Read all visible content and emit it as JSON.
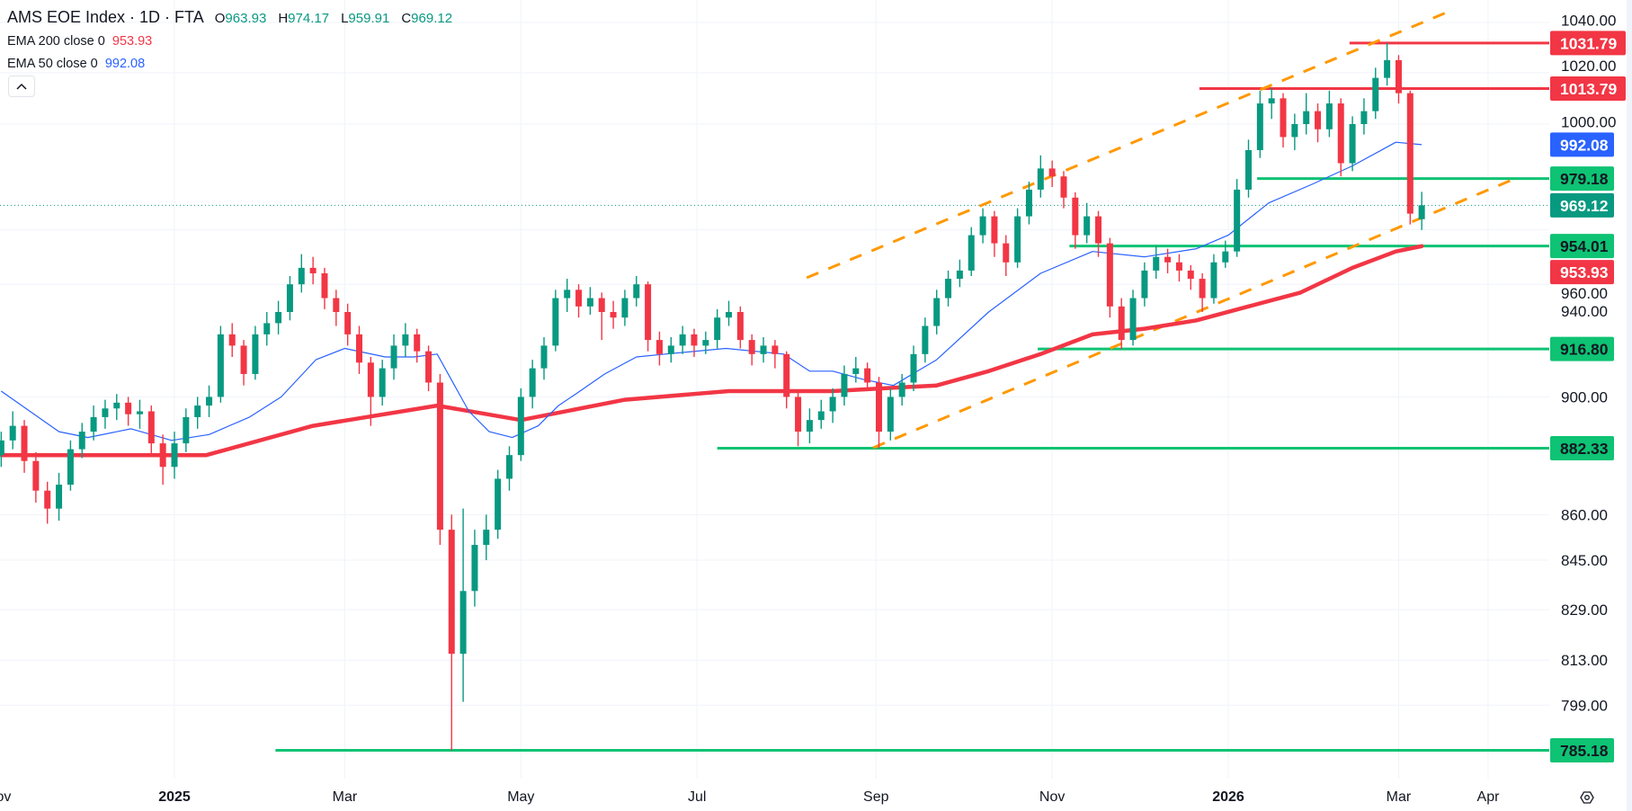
{
  "legend": {
    "title": "AMS EOE Index · 1D · FTA",
    "ohlc": [
      {
        "key": "O",
        "value": "963.93"
      },
      {
        "key": "H",
        "value": "974.17"
      },
      {
        "key": "L",
        "value": "959.91"
      },
      {
        "key": "C",
        "value": "969.12"
      }
    ],
    "ema200": {
      "label": "EMA 200 close 0",
      "value": "953.93"
    },
    "ema50": {
      "label": "EMA 50 close 0",
      "value": "992.08"
    }
  },
  "colors": {
    "up": "#089981",
    "down": "#f23645",
    "ema200": "#f23645",
    "ema50": "#2962ff",
    "support": "#0ec373",
    "resistance": "#f23645",
    "trendline": "#ff9800",
    "grid": "#f0f3fa"
  },
  "icons": {
    "collapse": "chevron-up-icon",
    "settings": "gear-icon"
  },
  "chart_data": {
    "type": "candlestick",
    "scale": "log",
    "grid": true,
    "ylim": [
      775,
      1050
    ],
    "y_ticks": [
      "1040.00",
      "1020.00",
      "1000.00",
      "960.00",
      "940.00",
      "900.00",
      "860.00",
      "845.00",
      "829.00",
      "813.00",
      "799.00"
    ],
    "x_ticks": [
      {
        "label": "Nov",
        "date": "2024-11-01"
      },
      {
        "label": "2025",
        "date": "2025-01-01"
      },
      {
        "label": "Mar",
        "date": "2025-03-01"
      },
      {
        "label": "May",
        "date": "2025-05-01"
      },
      {
        "label": "Jul",
        "date": "2025-07-01"
      },
      {
        "label": "Sep",
        "date": "2025-09-01"
      },
      {
        "label": "Nov",
        "date": "2025-11-01"
      },
      {
        "label": "2026",
        "date": "2026-01-01"
      },
      {
        "label": "Mar",
        "date": "2026-03-01"
      },
      {
        "label": "Apr",
        "date": "2026-04-01"
      }
    ],
    "candles": [
      [
        "2024-11-02",
        880,
        888,
        876,
        885
      ],
      [
        "2024-11-06",
        885,
        895,
        882,
        890
      ],
      [
        "2024-11-10",
        890,
        892,
        874,
        878
      ],
      [
        "2024-11-14",
        878,
        881,
        864,
        868
      ],
      [
        "2024-11-18",
        868,
        871,
        857,
        862
      ],
      [
        "2024-11-22",
        862,
        874,
        858,
        870
      ],
      [
        "2024-11-26",
        870,
        885,
        868,
        882
      ],
      [
        "2024-11-30",
        882,
        891,
        879,
        888
      ],
      [
        "2024-12-04",
        888,
        897,
        885,
        893
      ],
      [
        "2024-12-08",
        893,
        899,
        889,
        896
      ],
      [
        "2024-12-12",
        896,
        901,
        892,
        898
      ],
      [
        "2024-12-16",
        898,
        900,
        890,
        894
      ],
      [
        "2024-12-20",
        894,
        899,
        889,
        895
      ],
      [
        "2024-12-24",
        895,
        897,
        880,
        884
      ],
      [
        "2024-12-28",
        884,
        887,
        870,
        876
      ],
      [
        "2025-01-01",
        876,
        888,
        872,
        884
      ],
      [
        "2025-01-05",
        884,
        896,
        881,
        893
      ],
      [
        "2025-01-09",
        893,
        900,
        889,
        897
      ],
      [
        "2025-01-13",
        897,
        904,
        893,
        900
      ],
      [
        "2025-01-17",
        900,
        925,
        898,
        922
      ],
      [
        "2025-01-21",
        922,
        926,
        914,
        918
      ],
      [
        "2025-01-25",
        918,
        920,
        904,
        908
      ],
      [
        "2025-01-29",
        908,
        925,
        906,
        922
      ],
      [
        "2025-02-02",
        922,
        930,
        918,
        926
      ],
      [
        "2025-02-06",
        926,
        934,
        922,
        930
      ],
      [
        "2025-02-10",
        930,
        943,
        927,
        940
      ],
      [
        "2025-02-14",
        940,
        951,
        937,
        946
      ],
      [
        "2025-02-18",
        946,
        950,
        940,
        944
      ],
      [
        "2025-02-22",
        944,
        946,
        931,
        935
      ],
      [
        "2025-02-26",
        935,
        938,
        925,
        930
      ],
      [
        "2025-03-02",
        930,
        933,
        918,
        922
      ],
      [
        "2025-03-06",
        922,
        925,
        908,
        912
      ],
      [
        "2025-03-10",
        912,
        914,
        890,
        900
      ],
      [
        "2025-03-14",
        900,
        913,
        897,
        910
      ],
      [
        "2025-03-18",
        910,
        922,
        906,
        918
      ],
      [
        "2025-03-22",
        918,
        926,
        914,
        922
      ],
      [
        "2025-03-26",
        922,
        924,
        912,
        916
      ],
      [
        "2025-03-30",
        916,
        918,
        902,
        905
      ],
      [
        "2025-04-03",
        905,
        908,
        850,
        855
      ],
      [
        "2025-04-07",
        855,
        860,
        785.18,
        815
      ],
      [
        "2025-04-11",
        815,
        862,
        800,
        835
      ],
      [
        "2025-04-15",
        835,
        855,
        830,
        850
      ],
      [
        "2025-04-19",
        850,
        860,
        845,
        855
      ],
      [
        "2025-04-23",
        855,
        875,
        852,
        872
      ],
      [
        "2025-04-27",
        872,
        883,
        868,
        880
      ],
      [
        "2025-05-01",
        880,
        903,
        878,
        900
      ],
      [
        "2025-05-05",
        900,
        913,
        896,
        910
      ],
      [
        "2025-05-09",
        910,
        921,
        906,
        918
      ],
      [
        "2025-05-13",
        918,
        938,
        916,
        935
      ],
      [
        "2025-05-17",
        935,
        942,
        930,
        938
      ],
      [
        "2025-05-21",
        938,
        940,
        928,
        932
      ],
      [
        "2025-05-25",
        932,
        939,
        929,
        935
      ],
      [
        "2025-05-29",
        935,
        937,
        920,
        930
      ],
      [
        "2025-06-02",
        930,
        934,
        924,
        928
      ],
      [
        "2025-06-06",
        928,
        938,
        925,
        935
      ],
      [
        "2025-06-10",
        935,
        943,
        932,
        940
      ],
      [
        "2025-06-14",
        940,
        941,
        916,
        920
      ],
      [
        "2025-06-18",
        920,
        923,
        911,
        915
      ],
      [
        "2025-06-22",
        915,
        921,
        912,
        918
      ],
      [
        "2025-06-26",
        918,
        925,
        915,
        922
      ],
      [
        "2025-06-30",
        922,
        924,
        914,
        918
      ],
      [
        "2025-07-04",
        918,
        923,
        915,
        920
      ],
      [
        "2025-07-08",
        920,
        931,
        917,
        928
      ],
      [
        "2025-07-12",
        928,
        934,
        925,
        930
      ],
      [
        "2025-07-16",
        930,
        932,
        917,
        920
      ],
      [
        "2025-07-20",
        920,
        922,
        911,
        915
      ],
      [
        "2025-07-24",
        915,
        921,
        912,
        918
      ],
      [
        "2025-07-28",
        918,
        920,
        910,
        915
      ],
      [
        "2025-08-01",
        915,
        916,
        896,
        900
      ],
      [
        "2025-08-05",
        900,
        902,
        883,
        888
      ],
      [
        "2025-08-09",
        888,
        896,
        884,
        892
      ],
      [
        "2025-08-13",
        892,
        899,
        889,
        895
      ],
      [
        "2025-08-17",
        895,
        903,
        891,
        900
      ],
      [
        "2025-08-21",
        900,
        911,
        897,
        908
      ],
      [
        "2025-08-25",
        908,
        914,
        905,
        910
      ],
      [
        "2025-08-29",
        910,
        912,
        902,
        905
      ],
      [
        "2025-09-02",
        905,
        907,
        882.33,
        888
      ],
      [
        "2025-09-06",
        888,
        903,
        885,
        900
      ],
      [
        "2025-09-10",
        900,
        908,
        897,
        905
      ],
      [
        "2025-09-14",
        905,
        918,
        902,
        915
      ],
      [
        "2025-09-18",
        915,
        928,
        912,
        925
      ],
      [
        "2025-09-22",
        925,
        938,
        922,
        935
      ],
      [
        "2025-09-26",
        935,
        945,
        932,
        942
      ],
      [
        "2025-09-30",
        942,
        949,
        939,
        945
      ],
      [
        "2025-10-04",
        945,
        961,
        943,
        958
      ],
      [
        "2025-10-08",
        958,
        968,
        955,
        965
      ],
      [
        "2025-10-12",
        965,
        967,
        950,
        955
      ],
      [
        "2025-10-16",
        955,
        958,
        943,
        948
      ],
      [
        "2025-10-20",
        948,
        968,
        946,
        965
      ],
      [
        "2025-10-24",
        965,
        978,
        962,
        975
      ],
      [
        "2025-10-28",
        975,
        988,
        972,
        983
      ],
      [
        "2025-11-01",
        983,
        986,
        976,
        980
      ],
      [
        "2025-11-05",
        980,
        982,
        968,
        972
      ],
      [
        "2025-11-09",
        972,
        974,
        953,
        958
      ],
      [
        "2025-11-13",
        958,
        970,
        955,
        965
      ],
      [
        "2025-11-17",
        965,
        967,
        950,
        955
      ],
      [
        "2025-11-21",
        955,
        957,
        928,
        932
      ],
      [
        "2025-11-25",
        932,
        935,
        916.8,
        920
      ],
      [
        "2025-11-29",
        920,
        938,
        918,
        935
      ],
      [
        "2025-12-03",
        935,
        948,
        932,
        945
      ],
      [
        "2025-12-07",
        945,
        954,
        942,
        950
      ],
      [
        "2025-12-11",
        950,
        953,
        944,
        948
      ],
      [
        "2025-12-15",
        948,
        951,
        941,
        945
      ],
      [
        "2025-12-19",
        945,
        947,
        938,
        942
      ],
      [
        "2025-12-23",
        942,
        944,
        930,
        935
      ],
      [
        "2025-12-27",
        935,
        951,
        933,
        948
      ],
      [
        "2025-12-31",
        948,
        956,
        946,
        952
      ],
      [
        "2026-01-04",
        952,
        979,
        950,
        975
      ],
      [
        "2026-01-08",
        975,
        994,
        972,
        990
      ],
      [
        "2026-01-12",
        990,
        1013,
        987,
        1008
      ],
      [
        "2026-01-16",
        1008,
        1014,
        1002,
        1010
      ],
      [
        "2026-01-20",
        1010,
        1012,
        991,
        995
      ],
      [
        "2026-01-24",
        995,
        1004,
        990,
        1000
      ],
      [
        "2026-01-28",
        1000,
        1012,
        996,
        1005
      ],
      [
        "2026-02-01",
        1005,
        1008,
        993,
        998
      ],
      [
        "2026-02-05",
        998,
        1013,
        995,
        1008
      ],
      [
        "2026-02-09",
        1008,
        1010,
        980,
        985
      ],
      [
        "2026-02-13",
        985,
        1003,
        982,
        1000
      ],
      [
        "2026-02-17",
        1000,
        1010,
        996,
        1005
      ],
      [
        "2026-02-21",
        1005,
        1022,
        1002,
        1018
      ],
      [
        "2026-02-25",
        1018,
        1031.79,
        1015,
        1025
      ],
      [
        "2026-03-01",
        1025,
        1027,
        1008,
        1012
      ],
      [
        "2026-03-05",
        1012,
        1013,
        962,
        966
      ],
      [
        "2026-03-09",
        963.93,
        974.17,
        959.91,
        969.12
      ]
    ],
    "ema50": [
      [
        "2024-11-02",
        902
      ],
      [
        "2024-11-22",
        888
      ],
      [
        "2024-12-02",
        886
      ],
      [
        "2024-12-17",
        889
      ],
      [
        "2024-12-31",
        885
      ],
      [
        "2025-01-13",
        887
      ],
      [
        "2025-01-27",
        893
      ],
      [
        "2025-02-07",
        900
      ],
      [
        "2025-02-19",
        913
      ],
      [
        "2025-03-01",
        917
      ],
      [
        "2025-03-15",
        914
      ],
      [
        "2025-03-25",
        914
      ],
      [
        "2025-04-02",
        915
      ],
      [
        "2025-04-08",
        904
      ],
      [
        "2025-04-13",
        895
      ],
      [
        "2025-04-20",
        888
      ],
      [
        "2025-04-28",
        886
      ],
      [
        "2025-05-07",
        890
      ],
      [
        "2025-05-14",
        897
      ],
      [
        "2025-05-20",
        901
      ],
      [
        "2025-05-30",
        908
      ],
      [
        "2025-06-10",
        914
      ],
      [
        "2025-06-20",
        915
      ],
      [
        "2025-07-11",
        917
      ],
      [
        "2025-07-31",
        915
      ],
      [
        "2025-08-09",
        909
      ],
      [
        "2025-08-17",
        909
      ],
      [
        "2025-08-28",
        906
      ],
      [
        "2025-09-07",
        904
      ],
      [
        "2025-09-22",
        913
      ],
      [
        "2025-10-10",
        930
      ],
      [
        "2025-10-28",
        944
      ],
      [
        "2025-11-15",
        952
      ],
      [
        "2025-12-03",
        950
      ],
      [
        "2025-12-21",
        953
      ],
      [
        "2026-01-01",
        958
      ],
      [
        "2026-01-15",
        970
      ],
      [
        "2026-01-30",
        977
      ],
      [
        "2026-02-13",
        984
      ],
      [
        "2026-02-28",
        993
      ],
      [
        "2026-03-09",
        992.08
      ]
    ],
    "ema200": [
      [
        "2024-11-02",
        880
      ],
      [
        "2025-01-12",
        880
      ],
      [
        "2025-02-18",
        890
      ],
      [
        "2025-04-02",
        897
      ],
      [
        "2025-05-01",
        892
      ],
      [
        "2025-06-06",
        899
      ],
      [
        "2025-07-12",
        902
      ],
      [
        "2025-08-17",
        902
      ],
      [
        "2025-09-22",
        904
      ],
      [
        "2025-10-10",
        909
      ],
      [
        "2025-10-28",
        915
      ],
      [
        "2025-11-15",
        922
      ],
      [
        "2025-12-03",
        924
      ],
      [
        "2025-12-21",
        927
      ],
      [
        "2026-01-08",
        932
      ],
      [
        "2026-01-26",
        937
      ],
      [
        "2026-02-13",
        946
      ],
      [
        "2026-02-28",
        952
      ],
      [
        "2026-03-09",
        953.93
      ]
    ],
    "horizontal_levels": [
      {
        "price": 1031.79,
        "label": "1031.79",
        "kind": "resistance",
        "from": "2026-02-12"
      },
      {
        "price": 1013.79,
        "label": "1013.79",
        "kind": "resistance",
        "from": "2025-12-22"
      },
      {
        "price": 979.18,
        "label": "979.18",
        "kind": "support",
        "from": "2026-01-11"
      },
      {
        "price": 954.01,
        "label": "954.01",
        "kind": "support",
        "from": "2025-11-07"
      },
      {
        "price": 916.8,
        "label": "916.80",
        "kind": "support",
        "from": "2025-10-27"
      },
      {
        "price": 882.33,
        "label": "882.33",
        "kind": "support",
        "from": "2025-07-08"
      },
      {
        "price": 785.18,
        "label": "785.18",
        "kind": "support",
        "from": "2025-02-05"
      }
    ],
    "trendlines": [
      {
        "from": [
          "2025-08-08",
          942.4
        ],
        "to": [
          "2026-03-19",
          1044.7
        ]
      },
      {
        "from": [
          "2025-08-31",
          882.5
        ],
        "to": [
          "2026-04-10",
          979.0
        ]
      }
    ],
    "last_price": {
      "price": 969.12,
      "label": "969.12"
    },
    "axis_labels": [
      {
        "label": "992.08",
        "price": 992.08,
        "style": "ema50"
      },
      {
        "label": "953.93",
        "price": 953.93,
        "style": "ema200"
      }
    ]
  }
}
